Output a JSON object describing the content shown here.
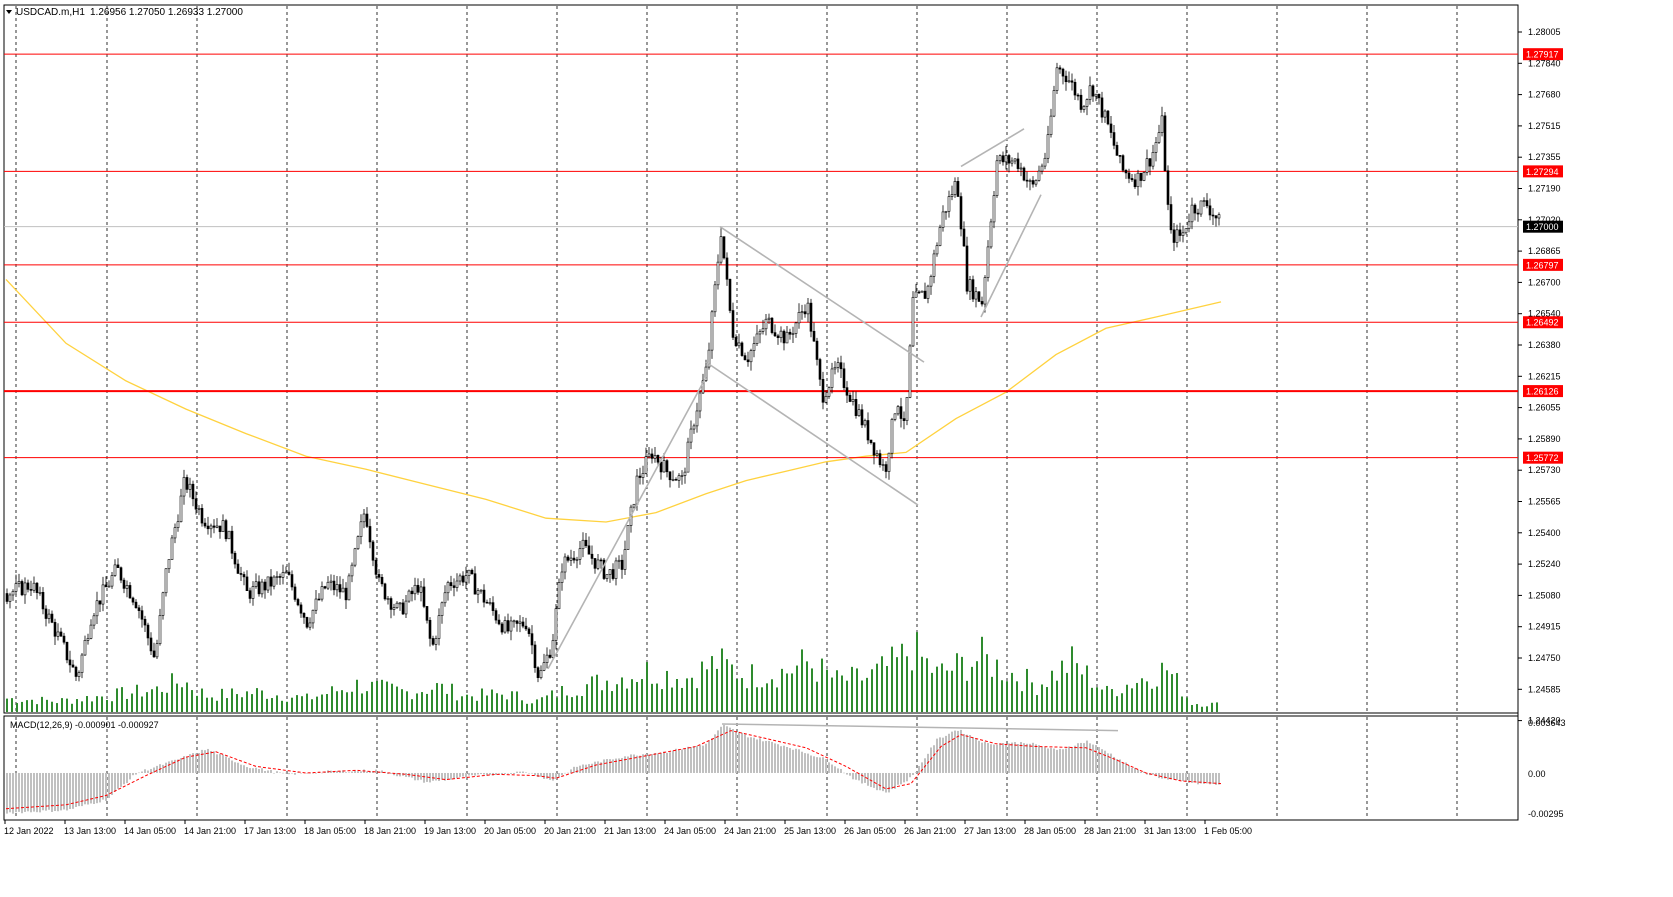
{
  "header": {
    "symbol": "USDCAD.m,H1",
    "ohlc": "1.26956 1.27050 1.26933 1.27000"
  },
  "macd": {
    "label": "MACD(12,26,9) -0.000901 -0.000927",
    "axis_ticks": [
      "0.003643",
      "0.00",
      "-0.00295"
    ]
  },
  "price_axis": {
    "ticks": [
      "1.28005",
      "1.27840",
      "1.27680",
      "1.27515",
      "1.27355",
      "1.27190",
      "1.27020",
      "1.26865",
      "1.26700",
      "1.26540",
      "1.26380",
      "1.26215",
      "1.26055",
      "1.25890",
      "1.25730",
      "1.25565",
      "1.25400",
      "1.25240",
      "1.25080",
      "1.24915",
      "1.24750",
      "1.24585",
      "1.24420"
    ],
    "current_price": "1.27000"
  },
  "levels": [
    "1.27917",
    "1.27294",
    "1.26797",
    "1.26492",
    "1.26126",
    "1.25772"
  ],
  "time_axis": [
    "12 Jan 2022",
    "13 Jan 13:00",
    "14 Jan 05:00",
    "14 Jan 21:00",
    "17 Jan 13:00",
    "18 Jan 05:00",
    "18 Jan 21:00",
    "19 Jan 13:00",
    "20 Jan 05:00",
    "20 Jan 21:00",
    "21 Jan 13:00",
    "24 Jan 05:00",
    "24 Jan 21:00",
    "25 Jan 13:00",
    "26 Jan 05:00",
    "26 Jan 21:00",
    "27 Jan 13:00",
    "28 Jan 05:00",
    "28 Jan 21:00",
    "31 Jan 13:00",
    "1 Feb 05:00"
  ],
  "colors": {
    "level": "#ff0000",
    "ma": "#ffd23f",
    "volume": "#2e8b2e",
    "candle": "#000000",
    "trendline": "#b4b4b4",
    "macd_hist": "#c0c0c0",
    "macd_signal": "#ff0000"
  },
  "chart_data": {
    "type": "candlestick",
    "symbol": "USDCAD",
    "timeframe": "H1",
    "y_range": [
      1.2442,
      1.2812
    ],
    "hline_levels": [
      1.27917,
      1.27294,
      1.26797,
      1.26492,
      1.26126,
      1.25772
    ],
    "price_path": [
      [
        0,
        1.2505
      ],
      [
        25,
        1.251
      ],
      [
        55,
        1.2478
      ],
      [
        70,
        1.246
      ],
      [
        85,
        1.2495
      ],
      [
        110,
        1.2518
      ],
      [
        130,
        1.25
      ],
      [
        148,
        1.247
      ],
      [
        160,
        1.252
      ],
      [
        178,
        1.2565
      ],
      [
        196,
        1.2545
      ],
      [
        218,
        1.254
      ],
      [
        240,
        1.2505
      ],
      [
        262,
        1.251
      ],
      [
        280,
        1.2515
      ],
      [
        300,
        1.249
      ],
      [
        320,
        1.251
      ],
      [
        340,
        1.2505
      ],
      [
        358,
        1.255
      ],
      [
        372,
        1.251
      ],
      [
        392,
        1.2495
      ],
      [
        412,
        1.251
      ],
      [
        425,
        1.2475
      ],
      [
        440,
        1.251
      ],
      [
        460,
        1.2515
      ],
      [
        480,
        1.25
      ],
      [
        500,
        1.2485
      ],
      [
        520,
        1.249
      ],
      [
        532,
        1.246
      ],
      [
        545,
        1.2478
      ],
      [
        555,
        1.252
      ],
      [
        575,
        1.253
      ],
      [
        600,
        1.2515
      ],
      [
        615,
        1.252
      ],
      [
        630,
        1.2565
      ],
      [
        645,
        1.258
      ],
      [
        660,
        1.257
      ],
      [
        675,
        1.2565
      ],
      [
        688,
        1.26
      ],
      [
        700,
        1.2625
      ],
      [
        714,
        1.2698
      ],
      [
        725,
        1.2645
      ],
      [
        740,
        1.263
      ],
      [
        760,
        1.265
      ],
      [
        780,
        1.264
      ],
      [
        800,
        1.266
      ],
      [
        815,
        1.261
      ],
      [
        830,
        1.2625
      ],
      [
        848,
        1.2605
      ],
      [
        865,
        1.2585
      ],
      [
        878,
        1.257
      ],
      [
        890,
        1.261
      ],
      [
        898,
        1.259
      ],
      [
        906,
        1.266
      ],
      [
        920,
        1.2665
      ],
      [
        935,
        1.2705
      ],
      [
        950,
        1.2725
      ],
      [
        960,
        1.267
      ],
      [
        975,
        1.266
      ],
      [
        990,
        1.2735
      ],
      [
        1010,
        1.2735
      ],
      [
        1025,
        1.272
      ],
      [
        1040,
        1.274
      ],
      [
        1050,
        1.2785
      ],
      [
        1060,
        1.278
      ],
      [
        1075,
        1.2765
      ],
      [
        1085,
        1.2775
      ],
      [
        1100,
        1.2755
      ],
      [
        1115,
        1.273
      ],
      [
        1130,
        1.2725
      ],
      [
        1145,
        1.2738
      ],
      [
        1155,
        1.2755
      ],
      [
        1163,
        1.2695
      ],
      [
        1175,
        1.2695
      ],
      [
        1185,
        1.271
      ],
      [
        1200,
        1.2712
      ],
      [
        1215,
        1.27
      ]
    ],
    "moving_average": [
      [
        0,
        1.2672
      ],
      [
        60,
        1.2638
      ],
      [
        120,
        1.2618
      ],
      [
        180,
        1.2603
      ],
      [
        240,
        1.259
      ],
      [
        300,
        1.2578
      ],
      [
        360,
        1.2571
      ],
      [
        420,
        1.2563
      ],
      [
        480,
        1.2555
      ],
      [
        540,
        1.2545
      ],
      [
        600,
        1.2543
      ],
      [
        650,
        1.2548
      ],
      [
        700,
        1.2558
      ],
      [
        740,
        1.2565
      ],
      [
        780,
        1.257
      ],
      [
        820,
        1.2575
      ],
      [
        860,
        1.2578
      ],
      [
        900,
        1.258
      ],
      [
        950,
        1.2598
      ],
      [
        1000,
        1.2612
      ],
      [
        1050,
        1.2632
      ],
      [
        1100,
        1.2646
      ],
      [
        1150,
        1.2652
      ],
      [
        1215,
        1.266
      ]
    ],
    "trendlines": [
      [
        [
          542,
          1.2465
        ],
        [
          700,
          1.262
        ]
      ],
      [
        [
          700,
          1.2628
        ],
        [
          912,
          1.2552
        ]
      ],
      [
        [
          714,
          1.27
        ],
        [
          918,
          1.2628
        ]
      ],
      [
        [
          975,
          1.2652
        ],
        [
          1035,
          1.2717
        ]
      ],
      [
        [
          955,
          1.2732
        ],
        [
          1018,
          1.2752
        ]
      ]
    ],
    "volume_profile": [
      [
        0,
        0.15
      ],
      [
        50,
        0.12
      ],
      [
        100,
        0.18
      ],
      [
        150,
        0.25
      ],
      [
        175,
        0.35
      ],
      [
        200,
        0.18
      ],
      [
        250,
        0.22
      ],
      [
        300,
        0.15
      ],
      [
        350,
        0.3
      ],
      [
        400,
        0.22
      ],
      [
        430,
        0.28
      ],
      [
        460,
        0.18
      ],
      [
        500,
        0.2
      ],
      [
        530,
        0.12
      ],
      [
        560,
        0.25
      ],
      [
        600,
        0.35
      ],
      [
        640,
        0.45
      ],
      [
        680,
        0.38
      ],
      [
        710,
        0.55
      ],
      [
        740,
        0.4
      ],
      [
        780,
        0.45
      ],
      [
        800,
        0.55
      ],
      [
        830,
        0.35
      ],
      [
        860,
        0.38
      ],
      [
        890,
        0.55
      ],
      [
        905,
        0.7
      ],
      [
        930,
        0.42
      ],
      [
        975,
        0.6
      ],
      [
        1000,
        0.45
      ],
      [
        1030,
        0.3
      ],
      [
        1065,
        0.55
      ],
      [
        1100,
        0.22
      ],
      [
        1130,
        0.35
      ],
      [
        1160,
        0.48
      ],
      [
        1185,
        0.1
      ],
      [
        1215,
        0.08
      ]
    ],
    "macd_hist_path": [
      [
        0,
        -0.003
      ],
      [
        60,
        -0.0028
      ],
      [
        100,
        -0.002
      ],
      [
        130,
        0.0
      ],
      [
        170,
        0.001
      ],
      [
        200,
        0.0018
      ],
      [
        240,
        0.0005
      ],
      [
        280,
        -0.0001
      ],
      [
        320,
        0.0001
      ],
      [
        370,
        0.0002
      ],
      [
        420,
        -0.0007
      ],
      [
        470,
        -0.0002
      ],
      [
        520,
        0.0001
      ],
      [
        545,
        -0.0006
      ],
      [
        570,
        0.0005
      ],
      [
        620,
        0.0013
      ],
      [
        660,
        0.0016
      ],
      [
        700,
        0.0022
      ],
      [
        716,
        0.0036
      ],
      [
        740,
        0.0028
      ],
      [
        780,
        0.002
      ],
      [
        820,
        0.001
      ],
      [
        850,
        -0.0006
      ],
      [
        880,
        -0.0015
      ],
      [
        905,
        -0.0003
      ],
      [
        930,
        0.0025
      ],
      [
        950,
        0.0033
      ],
      [
        980,
        0.0022
      ],
      [
        1020,
        0.0023
      ],
      [
        1050,
        0.0017
      ],
      [
        1080,
        0.0024
      ],
      [
        1100,
        0.0016
      ],
      [
        1130,
        0.0002
      ],
      [
        1160,
        -0.0005
      ],
      [
        1190,
        -0.0008
      ],
      [
        1215,
        -0.0009
      ]
    ],
    "macd_signal_path": [
      [
        0,
        -0.0027
      ],
      [
        60,
        -0.0024
      ],
      [
        100,
        -0.0017
      ],
      [
        140,
        -0.0002
      ],
      [
        180,
        0.0012
      ],
      [
        210,
        0.0016
      ],
      [
        250,
        0.0005
      ],
      [
        300,
        0.0
      ],
      [
        350,
        0.0002
      ],
      [
        400,
        -0.0001
      ],
      [
        440,
        -0.0005
      ],
      [
        490,
        -0.0001
      ],
      [
        530,
        -0.0002
      ],
      [
        550,
        -0.0004
      ],
      [
        590,
        0.0006
      ],
      [
        640,
        0.0013
      ],
      [
        690,
        0.002
      ],
      [
        725,
        0.0032
      ],
      [
        760,
        0.0026
      ],
      [
        800,
        0.0019
      ],
      [
        840,
        0.0005
      ],
      [
        880,
        -0.0012
      ],
      [
        905,
        -0.0008
      ],
      [
        935,
        0.002
      ],
      [
        955,
        0.0029
      ],
      [
        990,
        0.0022
      ],
      [
        1030,
        0.002
      ],
      [
        1080,
        0.0019
      ],
      [
        1110,
        0.001
      ],
      [
        1140,
        0.0
      ],
      [
        1175,
        -0.0006
      ],
      [
        1215,
        -0.0008
      ]
    ],
    "macd_trendline": [
      [
        716,
        0.0037
      ],
      [
        1112,
        0.0032
      ]
    ]
  }
}
